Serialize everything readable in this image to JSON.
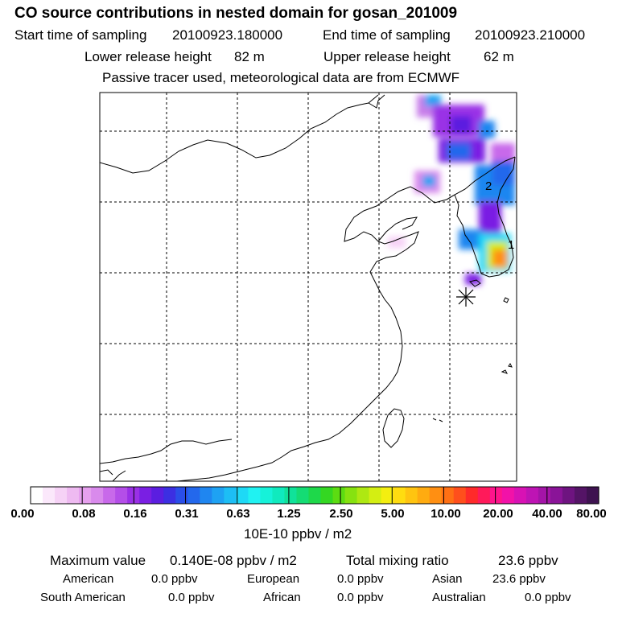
{
  "header": {
    "title": "CO  source contributions in nested domain for gosan_201009",
    "start_label": "Start time of sampling",
    "start_value": "20100923.180000",
    "end_label": "End time of sampling",
    "end_value": "20100923.210000",
    "lower_label": "Lower release height",
    "lower_value": "82 m",
    "upper_label": "Upper release height",
    "upper_value": "62 m",
    "note": "Passive tracer used, meteorological data are from ECMWF"
  },
  "map": {
    "markers": [
      "1",
      "2"
    ],
    "station_icon": "asterisk-station-icon"
  },
  "colorbar": {
    "ticks": [
      "0.00",
      "0.08",
      "0.16",
      "0.31",
      "0.63",
      "1.25",
      "2.50",
      "5.00",
      "10.00",
      "20.00",
      "40.00",
      "80.00"
    ],
    "unit": "10E-10 ppbv / m2",
    "colors": [
      "#ffffff",
      "#fbe8fb",
      "#f6d2f6",
      "#eebaf1",
      "#e6a0ee",
      "#d98aec",
      "#c869ea",
      "#b44ee8",
      "#9a30e6",
      "#7a1fe3",
      "#5b1ee0",
      "#3c2fe2",
      "#2a4ee8",
      "#2368ec",
      "#1f86f0",
      "#1ea2f3",
      "#1dbef5",
      "#1ed9f6",
      "#20f2f2",
      "#16f2d9",
      "#10eabe",
      "#10e29a",
      "#14dc74",
      "#1ed84a",
      "#34d722",
      "#5cdc12",
      "#86e210",
      "#aee812",
      "#d4ee12",
      "#f4ee10",
      "#ffdc10",
      "#ffc410",
      "#ffab10",
      "#ff8f12",
      "#ff7014",
      "#ff4f1c",
      "#ff2a2a",
      "#ff1a5a",
      "#ff148c",
      "#f212a8",
      "#d812b4",
      "#be14b4",
      "#a414a8",
      "#8a1498",
      "#6e1480",
      "#541466",
      "#3e1250"
    ]
  },
  "footer": {
    "max_label": "Maximum value",
    "max_value": "0.140E-08 ppbv / m2",
    "total_label": "Total mixing ratio",
    "total_value": "23.6 ppbv",
    "regions": [
      {
        "name": "American",
        "value": "0.0 ppbv"
      },
      {
        "name": "European",
        "value": "0.0 ppbv"
      },
      {
        "name": "Asian",
        "value": "23.6 ppbv"
      },
      {
        "name": "South American",
        "value": "0.0 ppbv"
      },
      {
        "name": "African",
        "value": "0.0 ppbv"
      },
      {
        "name": "Australian",
        "value": "0.0 ppbv"
      }
    ]
  }
}
